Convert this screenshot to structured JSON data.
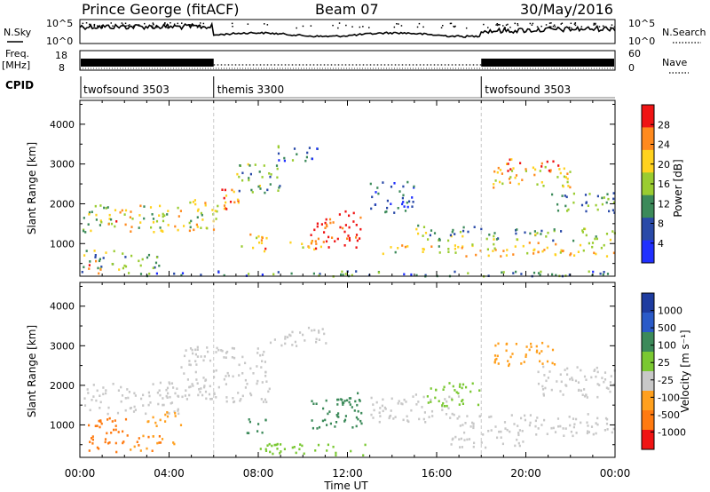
{
  "header": {
    "station": "Prince George (fitACF)",
    "beam": "Beam 07",
    "date": "30/May/2016"
  },
  "noise_panel": {
    "left_label": "N.Sky",
    "right_label": "N.Search",
    "left_ticks": [
      "10^5",
      "10^0"
    ],
    "right_ticks": [
      "10^5",
      "10^0"
    ]
  },
  "freq_panel": {
    "left_label_1": "Freq.",
    "left_label_2": "[MHz]",
    "right_label": "Nave",
    "left_ticks": [
      "18",
      "8"
    ],
    "right_ticks": [
      "60",
      "0"
    ]
  },
  "cpid": {
    "label": "CPID",
    "modes": [
      {
        "name": "twofsound 3503",
        "start_hour": 0
      },
      {
        "name": "themis 3300",
        "start_hour": 6
      },
      {
        "name": "twofsound 3503",
        "start_hour": 18
      }
    ]
  },
  "chart_data": [
    {
      "type": "heatmap",
      "title": "",
      "xlabel": "Time UT",
      "ylabel": "Slant Range [km]",
      "x_ticks": [
        "00:00",
        "04:00",
        "08:00",
        "12:00",
        "16:00",
        "20:00",
        "00:00"
      ],
      "y_ticks": [
        1000,
        2000,
        3000,
        4000
      ],
      "xlim_hours": [
        0,
        24
      ],
      "ylim": [
        180,
        4600
      ],
      "colorbar_label": "Power [dB]",
      "colorbar_ticks": [
        4,
        8,
        12,
        16,
        20,
        24,
        28
      ],
      "colorbar_colors": [
        "#2030ff",
        "#2a4aa8",
        "#3c8a5a",
        "#9acc30",
        "#ffd21e",
        "#ff8a1e",
        "#f01414"
      ],
      "regions": [
        {
          "t0": 0.1,
          "t1": 1.5,
          "r0": 1300,
          "r1": 2000,
          "v": 14
        },
        {
          "t0": 1.0,
          "t1": 2.3,
          "r0": 1450,
          "r1": 1900,
          "v": 20
        },
        {
          "t0": 2.2,
          "t1": 4.5,
          "r0": 1300,
          "r1": 2000,
          "v": 16
        },
        {
          "t0": 4.5,
          "t1": 6.2,
          "r0": 1350,
          "r1": 2200,
          "v": 16
        },
        {
          "t0": 6.0,
          "t1": 7.2,
          "r0": 1800,
          "r1": 2400,
          "v": 22
        },
        {
          "t0": 7.0,
          "t1": 9.0,
          "r0": 2300,
          "r1": 3050,
          "v": 12
        },
        {
          "t0": 8.8,
          "t1": 10.8,
          "r0": 3100,
          "r1": 3500,
          "v": 8
        },
        {
          "t0": 0.1,
          "t1": 2.0,
          "r0": 350,
          "r1": 850,
          "v": 12
        },
        {
          "t0": 0.3,
          "t1": 0.9,
          "r0": 250,
          "r1": 600,
          "v": 26
        },
        {
          "t0": 2.0,
          "t1": 3.6,
          "r0": 400,
          "r1": 800,
          "v": 10
        },
        {
          "t0": 7.2,
          "t1": 8.4,
          "r0": 800,
          "r1": 1300,
          "v": 20
        },
        {
          "t0": 9.3,
          "t1": 10.8,
          "r0": 850,
          "r1": 1150,
          "v": 18
        },
        {
          "t0": 10.3,
          "t1": 12.6,
          "r0": 900,
          "r1": 1650,
          "v": 26
        },
        {
          "t0": 11.6,
          "t1": 12.6,
          "r0": 1350,
          "r1": 1850,
          "v": 28
        },
        {
          "t0": 13.0,
          "t1": 15.0,
          "r0": 1800,
          "r1": 2600,
          "v": 6
        },
        {
          "t0": 15.0,
          "t1": 18.0,
          "r0": 1100,
          "r1": 1500,
          "v": 12
        },
        {
          "t0": 13.5,
          "t1": 17.0,
          "r0": 750,
          "r1": 1000,
          "v": 16
        },
        {
          "t0": 17.0,
          "t1": 24.0,
          "r0": 700,
          "r1": 1050,
          "v": 18
        },
        {
          "t0": 18.0,
          "t1": 24.0,
          "r0": 1100,
          "r1": 1400,
          "v": 12
        },
        {
          "t0": 18.5,
          "t1": 22.0,
          "r0": 2400,
          "r1": 2950,
          "v": 18
        },
        {
          "t0": 19.0,
          "t1": 21.5,
          "r0": 2850,
          "r1": 3150,
          "v": 22
        },
        {
          "t0": 21.0,
          "t1": 24.0,
          "r0": 1800,
          "r1": 2300,
          "v": 10
        },
        {
          "t0": 0.0,
          "t1": 24.0,
          "r0": 200,
          "r1": 330,
          "v": 8
        }
      ]
    },
    {
      "type": "heatmap",
      "title": "",
      "xlabel": "Time UT",
      "ylabel": "Slant Range [km]",
      "x_ticks": [
        "00:00",
        "04:00",
        "08:00",
        "12:00",
        "16:00",
        "20:00",
        "00:00"
      ],
      "y_ticks": [
        1000,
        2000,
        3000,
        4000
      ],
      "xlim_hours": [
        0,
        24
      ],
      "ylim": [
        180,
        4600
      ],
      "colorbar_label": "Velocity [m s⁻¹]",
      "colorbar_ticks": [
        "1000",
        "500",
        "100",
        "25",
        "-25",
        "-100",
        "-500",
        "-1000"
      ],
      "colorbar_colors": [
        "#1e3ca0",
        "#2a5ac8",
        "#3c8a5a",
        "#7ac832",
        "#c8c8c8",
        "#ffa01e",
        "#ff7a10",
        "#f01414"
      ],
      "regions": [
        {
          "t0": 0.1,
          "t1": 4.5,
          "r0": 1300,
          "r1": 2100,
          "v": 0
        },
        {
          "t0": 4.5,
          "t1": 8.5,
          "r0": 1600,
          "r1": 3000,
          "v": 0
        },
        {
          "t0": 8.5,
          "t1": 11.0,
          "r0": 3000,
          "r1": 3500,
          "v": 0
        },
        {
          "t0": 0.3,
          "t1": 2.2,
          "r0": 300,
          "r1": 1200,
          "v": -150
        },
        {
          "t0": 2.0,
          "t1": 4.2,
          "r0": 350,
          "r1": 750,
          "v": -100
        },
        {
          "t0": 3.0,
          "t1": 4.5,
          "r0": 1000,
          "r1": 1400,
          "v": -80
        },
        {
          "t0": 7.3,
          "t1": 8.3,
          "r0": 800,
          "r1": 1200,
          "v": 200
        },
        {
          "t0": 10.3,
          "t1": 12.6,
          "r0": 900,
          "r1": 1700,
          "v": 150
        },
        {
          "t0": 11.5,
          "t1": 12.6,
          "r0": 1300,
          "r1": 1850,
          "v": 150
        },
        {
          "t0": 8.0,
          "t1": 13.0,
          "r0": 250,
          "r1": 550,
          "v": 60
        },
        {
          "t0": 13.0,
          "t1": 17.0,
          "r0": 1100,
          "r1": 1800,
          "v": 0
        },
        {
          "t0": 15.5,
          "t1": 18.0,
          "r0": 1500,
          "r1": 2100,
          "v": 60
        },
        {
          "t0": 18.5,
          "t1": 21.5,
          "r0": 2500,
          "r1": 3100,
          "v": -60
        },
        {
          "t0": 17.0,
          "t1": 24.0,
          "r0": 750,
          "r1": 1300,
          "v": 0
        },
        {
          "t0": 20.5,
          "t1": 24.0,
          "r0": 1700,
          "r1": 2500,
          "v": 0
        },
        {
          "t0": 16.5,
          "t1": 20.0,
          "r0": 450,
          "r1": 750,
          "v": 0
        }
      ]
    }
  ]
}
